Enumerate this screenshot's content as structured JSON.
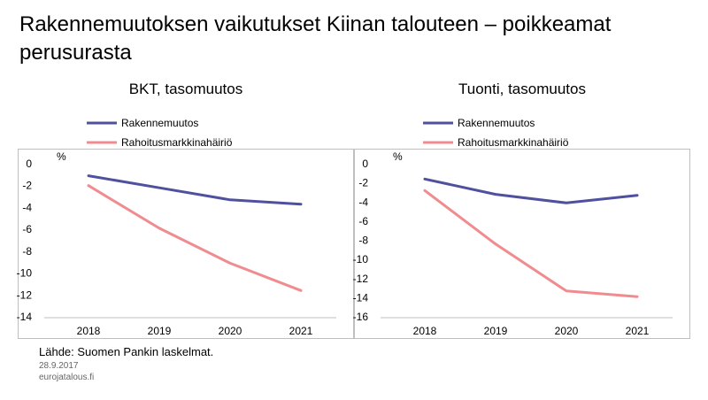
{
  "page": {
    "title": "Rakennemuutoksen vaikutukset Kiinan talouteen – poikkeamat perusurasta",
    "source": "Lähde: Suomen Pankin laskelmat.",
    "date": "28.9.2017",
    "site": "eurojatalous.fi"
  },
  "colors": {
    "structural": "#4F519F",
    "financial": "#F08C8F",
    "axis": "#BFBFBF"
  },
  "chart_data": [
    {
      "type": "line",
      "title": "BKT, tasomuutos",
      "unit_label": "%",
      "categories": [
        "2018",
        "2019",
        "2020",
        "2021"
      ],
      "ylim": [
        -14,
        0
      ],
      "yticks": [
        0,
        -2,
        -4,
        -6,
        -8,
        -10,
        -12,
        -14
      ],
      "legend_position": "top",
      "grid": false,
      "series": [
        {
          "name": "Rakennemuutos",
          "values": [
            -1.1,
            -2.2,
            -3.3,
            -3.7
          ]
        },
        {
          "name": "Rahoitusmarkkinahäiriö",
          "values": [
            -2.0,
            -5.9,
            -9.1,
            -11.6
          ]
        }
      ]
    },
    {
      "type": "line",
      "title": "Tuonti, tasomuutos",
      "unit_label": "%",
      "categories": [
        "2018",
        "2019",
        "2020",
        "2021"
      ],
      "ylim": [
        -16,
        0
      ],
      "yticks": [
        0,
        -2,
        -4,
        -6,
        -8,
        -10,
        -12,
        -14,
        -16
      ],
      "legend_position": "top",
      "grid": false,
      "series": [
        {
          "name": "Rakennemuutos",
          "values": [
            -1.6,
            -3.2,
            -4.1,
            -3.3
          ]
        },
        {
          "name": "Rahoitusmarkkinahäiriö",
          "values": [
            -2.8,
            -8.4,
            -13.3,
            -13.9
          ]
        }
      ]
    }
  ]
}
